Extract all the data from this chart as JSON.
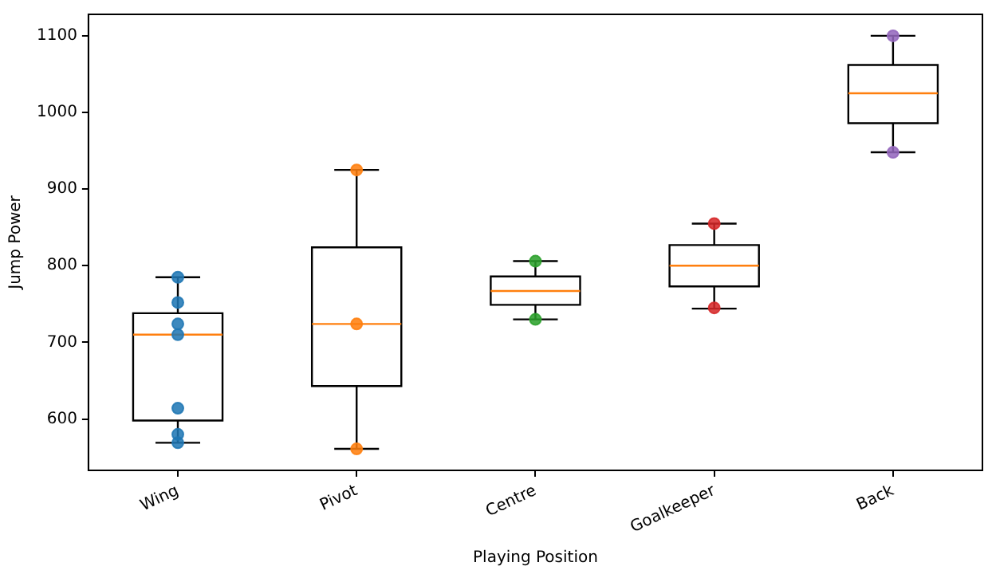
{
  "chart_data": {
    "type": "box",
    "xlabel": "Playing Position",
    "ylabel": "Jump Power",
    "categories": [
      "Wing",
      "Pivot",
      "Centre",
      "Goalkeeper",
      "Back"
    ],
    "boxes": [
      {
        "low": 569,
        "q1": 598,
        "median": 710,
        "q3": 738,
        "high": 785
      },
      {
        "low": 561,
        "q1": 643,
        "median": 724,
        "q3": 824,
        "high": 925
      },
      {
        "low": 730,
        "q1": 749,
        "median": 767,
        "q3": 786,
        "high": 806
      },
      {
        "low": 744,
        "q1": 773,
        "median": 800,
        "q3": 827,
        "high": 855
      },
      {
        "low": 948,
        "q1": 986,
        "median": 1025,
        "q3": 1062,
        "high": 1100
      }
    ],
    "series": [
      {
        "type": "scatter",
        "color": "#1f77b4",
        "x": [
          "Wing",
          "Wing",
          "Wing",
          "Wing",
          "Wing",
          "Wing",
          "Wing"
        ],
        "values": [
          785,
          752,
          724,
          710,
          614,
          580,
          569
        ]
      },
      {
        "type": "scatter",
        "color": "#ff7f0e",
        "x": [
          "Pivot",
          "Pivot",
          "Pivot"
        ],
        "values": [
          925,
          724,
          561
        ]
      },
      {
        "type": "scatter",
        "color": "#2ca02c",
        "x": [
          "Centre",
          "Centre"
        ],
        "values": [
          806,
          730
        ]
      },
      {
        "type": "scatter",
        "color": "#d62728",
        "x": [
          "Goalkeeper",
          "Goalkeeper"
        ],
        "values": [
          855,
          745
        ]
      },
      {
        "type": "scatter",
        "color": "#9467bd",
        "x": [
          "Back",
          "Back"
        ],
        "values": [
          1100,
          948
        ]
      }
    ],
    "ylim": [
      533,
      1128
    ],
    "yticks": [
      600,
      700,
      800,
      900,
      1000,
      1100
    ],
    "grid": false,
    "marker": "circle"
  }
}
